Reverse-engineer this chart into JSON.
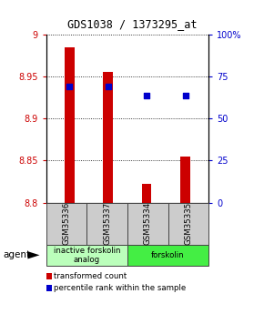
{
  "title": "GDS1038 / 1373295_at",
  "samples": [
    "GSM35336",
    "GSM35337",
    "GSM35334",
    "GSM35335"
  ],
  "bar_values": [
    8.985,
    8.955,
    8.822,
    8.855
  ],
  "bar_bottom": 8.8,
  "percentile_values": [
    0.693,
    0.693,
    0.638,
    0.638
  ],
  "ylim_left": [
    8.8,
    9.0
  ],
  "ylim_right": [
    0,
    1.0
  ],
  "yticks_left": [
    8.8,
    8.85,
    8.9,
    8.95,
    9.0
  ],
  "ytick_left_labels": [
    "8.8",
    "8.85",
    "8.9",
    "8.95",
    "9"
  ],
  "yticks_right": [
    0.0,
    0.25,
    0.5,
    0.75,
    1.0
  ],
  "ytick_right_labels": [
    "0",
    "25",
    "50",
    "75",
    "100%"
  ],
  "bar_color": "#cc0000",
  "percentile_color": "#0000cc",
  "agent_groups": [
    {
      "label": "inactive forskolin\nanalog",
      "span": [
        0,
        2
      ],
      "color": "#bbffbb"
    },
    {
      "label": "forskolin",
      "span": [
        2,
        4
      ],
      "color": "#44ee44"
    }
  ],
  "legend_bar_label": "transformed count",
  "legend_dot_label": "percentile rank within the sample",
  "agent_label": "agent",
  "sample_box_color": "#cccccc"
}
